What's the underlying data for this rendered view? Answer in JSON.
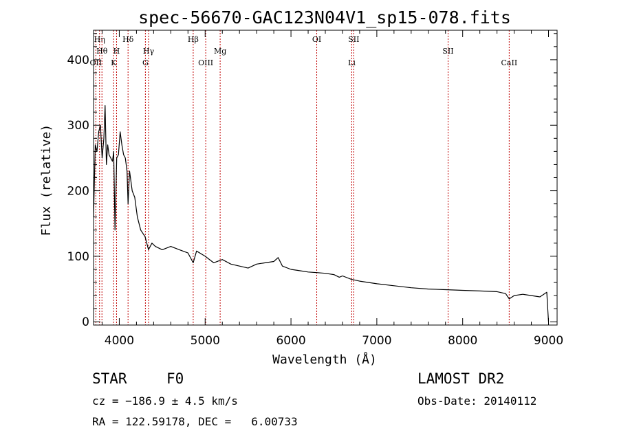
{
  "chart_data": {
    "type": "line",
    "title": "spec-56670-GAC123N04V1_sp15-078.fits",
    "xlabel": "Wavelength (Å)",
    "ylabel": "Flux (relative)",
    "xlim": [
      3700,
      9100
    ],
    "ylim": [
      -5,
      445
    ],
    "x_ticks": [
      4000,
      5000,
      6000,
      7000,
      8000,
      9000
    ],
    "y_ticks": [
      0,
      100,
      200,
      300,
      400
    ],
    "x_tick_labels": [
      "4000",
      "5000",
      "6000",
      "7000",
      "8000",
      "9000"
    ],
    "y_tick_labels": [
      "0",
      "100",
      "200",
      "300",
      "400"
    ],
    "grid": false,
    "series": [
      {
        "x": [
          3700,
          3720,
          3740,
          3760,
          3780,
          3800,
          3820,
          3835,
          3850,
          3865,
          3880,
          3900,
          3920,
          3935,
          3950,
          3970,
          3990,
          4010,
          4030,
          4050,
          4070,
          4090,
          4102,
          4120,
          4150,
          4180,
          4210,
          4250,
          4300,
          4340,
          4380,
          4420,
          4500,
          4600,
          4700,
          4800,
          4861,
          4900,
          5000,
          5100,
          5200,
          5300,
          5400,
          5500,
          5600,
          5700,
          5800,
          5850,
          5900,
          6000,
          6100,
          6200,
          6300,
          6400,
          6500,
          6563,
          6600,
          6700,
          6800,
          6900,
          7000,
          7200,
          7400,
          7600,
          7800,
          8000,
          8200,
          8400,
          8500,
          8542,
          8600,
          8700,
          8800,
          8900,
          8980,
          9000
        ],
        "y": [
          160,
          270,
          260,
          290,
          300,
          250,
          280,
          330,
          240,
          270,
          255,
          250,
          245,
          260,
          140,
          250,
          255,
          290,
          270,
          255,
          250,
          230,
          180,
          230,
          200,
          190,
          160,
          140,
          130,
          110,
          120,
          115,
          110,
          115,
          110,
          105,
          90,
          108,
          100,
          90,
          95,
          88,
          85,
          82,
          88,
          90,
          92,
          98,
          85,
          80,
          78,
          76,
          75,
          74,
          72,
          68,
          70,
          65,
          62,
          60,
          58,
          55,
          52,
          50,
          49,
          48,
          47,
          46,
          43,
          35,
          40,
          42,
          40,
          38,
          45,
          0
        ]
      }
    ],
    "lines": [
      {
        "x": 3727,
        "label": "OII",
        "row": 3
      },
      {
        "x": 3770,
        "label": "Hη",
        "row": 1
      },
      {
        "x": 3798,
        "label": "Hθ",
        "row": 2
      },
      {
        "x": 3934,
        "label": "K",
        "row": 3
      },
      {
        "x": 3968,
        "label": "H",
        "row": 2
      },
      {
        "x": 4102,
        "label": "Hδ",
        "row": 1
      },
      {
        "x": 4304,
        "label": "G",
        "row": 3
      },
      {
        "x": 4341,
        "label": "Hγ",
        "row": 2
      },
      {
        "x": 4861,
        "label": "Hβ",
        "row": 1
      },
      {
        "x": 5007,
        "label": "OIII",
        "row": 3
      },
      {
        "x": 5175,
        "label": "Mg",
        "row": 2
      },
      {
        "x": 6300,
        "label": "OI",
        "row": 1
      },
      {
        "x": 6708,
        "label": "Li",
        "row": 3
      },
      {
        "x": 6731,
        "label": "SII",
        "row": 1
      },
      {
        "x": 7830,
        "label": "SII",
        "row": 2
      },
      {
        "x": 8542,
        "label": "CaII",
        "row": 3
      }
    ]
  },
  "info": {
    "class_label": "STAR",
    "subclass_label": "F0",
    "survey": "LAMOST DR2",
    "cz_line": "cz = −186.9 ± 4.5 km/s",
    "obs_date_line": "Obs-Date: 20140112",
    "coords_line": "RA = 122.59178, DEC =   6.00733"
  },
  "colors": {
    "spectrum": "#000000",
    "line_markers": "#c00000",
    "axes": "#000000"
  }
}
